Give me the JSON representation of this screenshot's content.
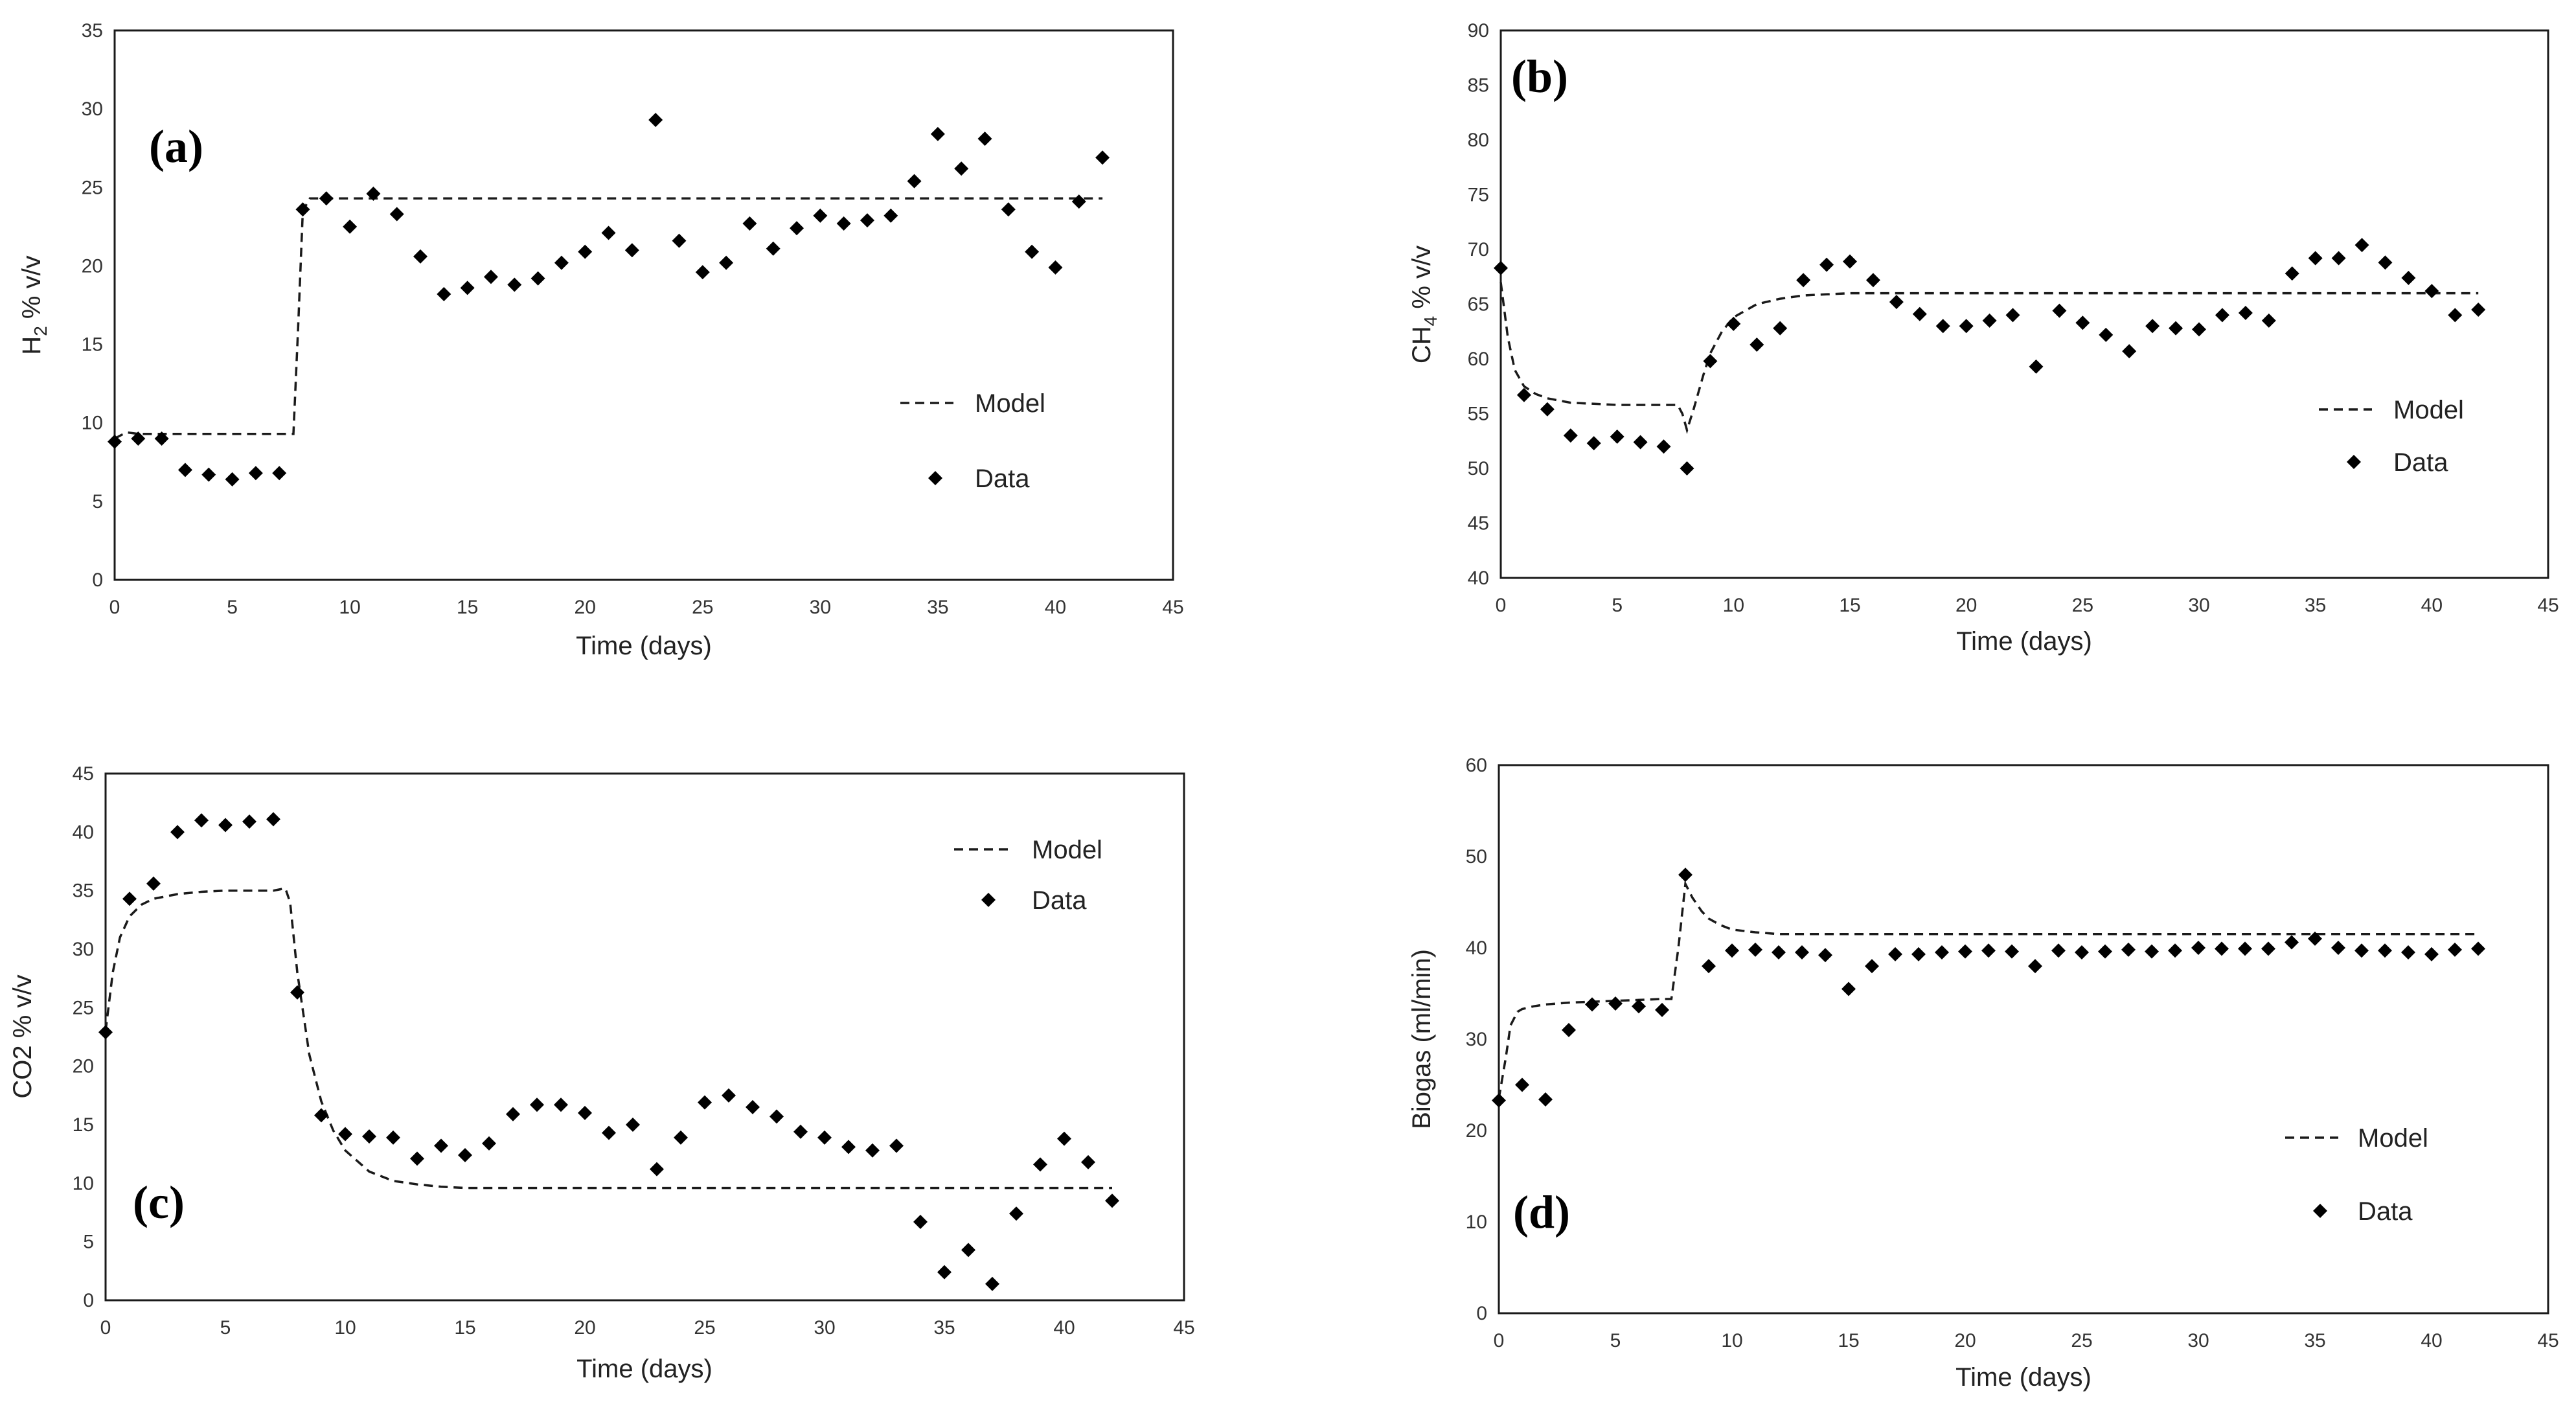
{
  "chart_data": [
    {
      "type": "scatter",
      "panel_label": "(a)",
      "ylabel": "H2 % v/v",
      "ylabel_main": "H",
      "ylabel_sub": "2",
      "ylabel_rest": " % v/v",
      "xlabel": "Time (days)",
      "xlim": [
        0,
        45
      ],
      "ylim": [
        0,
        35
      ],
      "xticks": [
        0,
        5,
        10,
        15,
        20,
        25,
        30,
        35,
        40,
        45
      ],
      "yticks": [
        0,
        5,
        10,
        15,
        20,
        25,
        30,
        35
      ],
      "legend": {
        "model": "Model",
        "data": "Data",
        "position": "center-right"
      },
      "series": [
        {
          "name": "Model",
          "style": "dashed",
          "x": [
            0,
            0.5,
            1,
            2,
            3,
            4,
            5,
            6,
            7,
            7.6,
            7.8,
            8,
            8.3,
            9,
            10,
            15,
            20,
            25,
            30,
            35,
            40,
            42
          ],
          "y": [
            9.0,
            9.4,
            9.3,
            9.3,
            9.3,
            9.3,
            9.3,
            9.3,
            9.3,
            9.3,
            16.0,
            23.5,
            24.3,
            24.3,
            24.3,
            24.3,
            24.3,
            24.3,
            24.3,
            24.3,
            24.3,
            24.3
          ]
        },
        {
          "name": "Data",
          "style": "diamond",
          "x": [
            0,
            1,
            2,
            3,
            4,
            5,
            6,
            7,
            8,
            9,
            10,
            11,
            12,
            13,
            14,
            15,
            16,
            17,
            18,
            19,
            20,
            21,
            22,
            23,
            24,
            25,
            26,
            27,
            28,
            29,
            30,
            31,
            32,
            33,
            34,
            35,
            36,
            37,
            38,
            39,
            40,
            41,
            42
          ],
          "y": [
            8.8,
            9.0,
            9.0,
            7.0,
            6.7,
            6.4,
            6.8,
            6.8,
            23.6,
            24.3,
            22.5,
            24.6,
            23.3,
            20.6,
            18.2,
            18.6,
            19.3,
            18.8,
            19.2,
            20.2,
            20.9,
            22.1,
            21.0,
            29.3,
            21.6,
            19.6,
            20.2,
            22.7,
            21.1,
            22.4,
            23.2,
            22.7,
            22.9,
            23.2,
            25.4,
            28.4,
            26.2,
            28.1,
            23.6,
            20.9,
            19.9,
            24.1,
            26.9
          ]
        }
      ]
    },
    {
      "type": "scatter",
      "panel_label": "(b)",
      "ylabel": "CH4 % v/v",
      "ylabel_main": "CH",
      "ylabel_sub": "4",
      "ylabel_rest": " % v/v",
      "xlabel": "Time (days)",
      "xlim": [
        0,
        45
      ],
      "ylim": [
        40,
        90
      ],
      "xticks": [
        0,
        5,
        10,
        15,
        20,
        25,
        30,
        35,
        40,
        45
      ],
      "yticks": [
        40,
        45,
        50,
        55,
        60,
        65,
        70,
        75,
        80,
        85,
        90
      ],
      "legend": {
        "model": "Model",
        "data": "Data",
        "position": "center-right"
      },
      "series": [
        {
          "name": "Model",
          "style": "dashed",
          "x": [
            0,
            0.3,
            0.6,
            1,
            1.5,
            2,
            3,
            4,
            5,
            6,
            7,
            7.6,
            7.8,
            8,
            8.3,
            8.7,
            9,
            9.5,
            10,
            11,
            12,
            13,
            14,
            15,
            20,
            25,
            30,
            35,
            40,
            42
          ],
          "y": [
            67.0,
            62.0,
            59.0,
            57.5,
            56.8,
            56.4,
            56.0,
            55.9,
            55.8,
            55.8,
            55.8,
            55.8,
            55.0,
            53.5,
            55.5,
            58.5,
            60.5,
            62.5,
            63.8,
            65.0,
            65.5,
            65.8,
            65.9,
            66.0,
            66.0,
            66.0,
            66.0,
            66.0,
            66.0,
            66.0
          ]
        },
        {
          "name": "Data",
          "style": "diamond",
          "x": [
            0,
            1,
            2,
            3,
            4,
            5,
            6,
            7,
            8,
            9,
            10,
            11,
            12,
            13,
            14,
            15,
            16,
            17,
            18,
            19,
            20,
            21,
            22,
            23,
            24,
            25,
            26,
            27,
            28,
            29,
            30,
            31,
            32,
            33,
            34,
            35,
            36,
            37,
            38,
            39,
            40,
            41,
            42
          ],
          "y": [
            68.3,
            56.7,
            55.4,
            53.0,
            52.3,
            52.9,
            52.4,
            52.0,
            50.0,
            59.8,
            63.2,
            61.3,
            62.8,
            67.2,
            68.6,
            68.9,
            67.2,
            65.2,
            64.1,
            63.0,
            63.0,
            63.5,
            64.0,
            59.3,
            64.4,
            63.3,
            62.2,
            60.7,
            63.0,
            62.8,
            62.7,
            64.0,
            64.2,
            63.5,
            67.8,
            69.2,
            69.2,
            70.4,
            68.8,
            67.4,
            66.2,
            64.0,
            64.5
          ]
        }
      ]
    },
    {
      "type": "scatter",
      "panel_label": "(c)",
      "ylabel": "CO2 % v/v",
      "xlabel": "Time (days)",
      "xlim": [
        0,
        45
      ],
      "ylim": [
        0,
        45
      ],
      "xticks": [
        0,
        5,
        10,
        15,
        20,
        25,
        30,
        35,
        40,
        45
      ],
      "yticks": [
        0,
        5,
        10,
        15,
        20,
        25,
        30,
        35,
        40,
        45
      ],
      "legend": {
        "model": "Model",
        "data": "Data",
        "position": "top-right"
      },
      "series": [
        {
          "name": "Model",
          "style": "dashed",
          "x": [
            0,
            0.3,
            0.6,
            1,
            1.5,
            2,
            3,
            4,
            5,
            6,
            7,
            7.5,
            7.7,
            8,
            8.5,
            9,
            9.5,
            10,
            11,
            12,
            13,
            14,
            15,
            20,
            25,
            30,
            35,
            40,
            42
          ],
          "y": [
            23.0,
            28.0,
            31.0,
            32.8,
            33.8,
            34.3,
            34.7,
            34.9,
            35.0,
            35.0,
            35.0,
            35.2,
            34.0,
            28.0,
            21.0,
            17.0,
            14.5,
            12.8,
            11.0,
            10.2,
            9.9,
            9.7,
            9.6,
            9.6,
            9.6,
            9.6,
            9.6,
            9.6,
            9.6
          ]
        },
        {
          "name": "Data",
          "style": "diamond",
          "x": [
            0,
            1,
            2,
            3,
            4,
            5,
            6,
            7,
            8,
            9,
            10,
            11,
            12,
            13,
            14,
            15,
            16,
            17,
            18,
            19,
            20,
            21,
            22,
            23,
            24,
            25,
            26,
            27,
            28,
            29,
            30,
            31,
            32,
            33,
            34,
            35,
            36,
            37,
            38,
            39,
            40,
            41,
            42
          ],
          "y": [
            22.9,
            34.3,
            35.6,
            40.0,
            41.0,
            40.6,
            40.9,
            41.1,
            26.3,
            15.8,
            14.2,
            14.0,
            13.9,
            12.1,
            13.2,
            12.4,
            13.4,
            15.9,
            16.7,
            16.7,
            16.0,
            14.3,
            15.0,
            11.2,
            13.9,
            16.9,
            17.5,
            16.5,
            15.7,
            14.4,
            13.9,
            13.1,
            12.8,
            13.2,
            6.7,
            2.4,
            4.3,
            1.4,
            7.4,
            11.6,
            13.8,
            11.8,
            8.5
          ]
        }
      ]
    },
    {
      "type": "scatter",
      "panel_label": "(d)",
      "ylabel": "Biogas (ml/min)",
      "xlabel": "Time (days)",
      "xlim": [
        0,
        45
      ],
      "ylim": [
        0,
        60
      ],
      "xticks": [
        0,
        5,
        10,
        15,
        20,
        25,
        30,
        35,
        40,
        45
      ],
      "yticks": [
        0,
        10,
        20,
        30,
        40,
        50,
        60
      ],
      "legend": {
        "model": "Model",
        "data": "Data",
        "position": "bottom-right"
      },
      "series": [
        {
          "name": "Model",
          "style": "dashed",
          "x": [
            0,
            0.3,
            0.5,
            0.8,
            1,
            1.5,
            2,
            3,
            4,
            5,
            6,
            7,
            7.4,
            7.7,
            8,
            8.3,
            8.7,
            9,
            9.5,
            10,
            11,
            12,
            13,
            15,
            20,
            25,
            30,
            35,
            40,
            42
          ],
          "y": [
            23.5,
            28.0,
            31.5,
            33.0,
            33.3,
            33.6,
            33.8,
            34.0,
            34.1,
            34.2,
            34.3,
            34.4,
            34.4,
            40.0,
            47.0,
            45.5,
            44.0,
            43.2,
            42.5,
            42.0,
            41.7,
            41.5,
            41.5,
            41.5,
            41.5,
            41.5,
            41.5,
            41.5,
            41.5,
            41.5
          ]
        },
        {
          "name": "Data",
          "style": "diamond",
          "x": [
            0,
            1,
            2,
            3,
            4,
            5,
            6,
            7,
            8,
            9,
            10,
            11,
            12,
            13,
            14,
            15,
            16,
            17,
            18,
            19,
            20,
            21,
            22,
            23,
            24,
            25,
            26,
            27,
            28,
            29,
            30,
            31,
            32,
            33,
            34,
            35,
            36,
            37,
            38,
            39,
            40,
            41,
            42
          ],
          "y": [
            23.3,
            25.0,
            23.4,
            31.0,
            33.8,
            33.9,
            33.6,
            33.2,
            48.0,
            38.0,
            39.7,
            39.8,
            39.5,
            39.5,
            39.2,
            35.5,
            38.0,
            39.3,
            39.3,
            39.5,
            39.6,
            39.7,
            39.6,
            38.0,
            39.7,
            39.5,
            39.6,
            39.8,
            39.6,
            39.7,
            40.0,
            39.9,
            39.9,
            39.9,
            40.6,
            41.0,
            40.0,
            39.7,
            39.7,
            39.5,
            39.3,
            39.8,
            39.9
          ]
        }
      ]
    }
  ]
}
